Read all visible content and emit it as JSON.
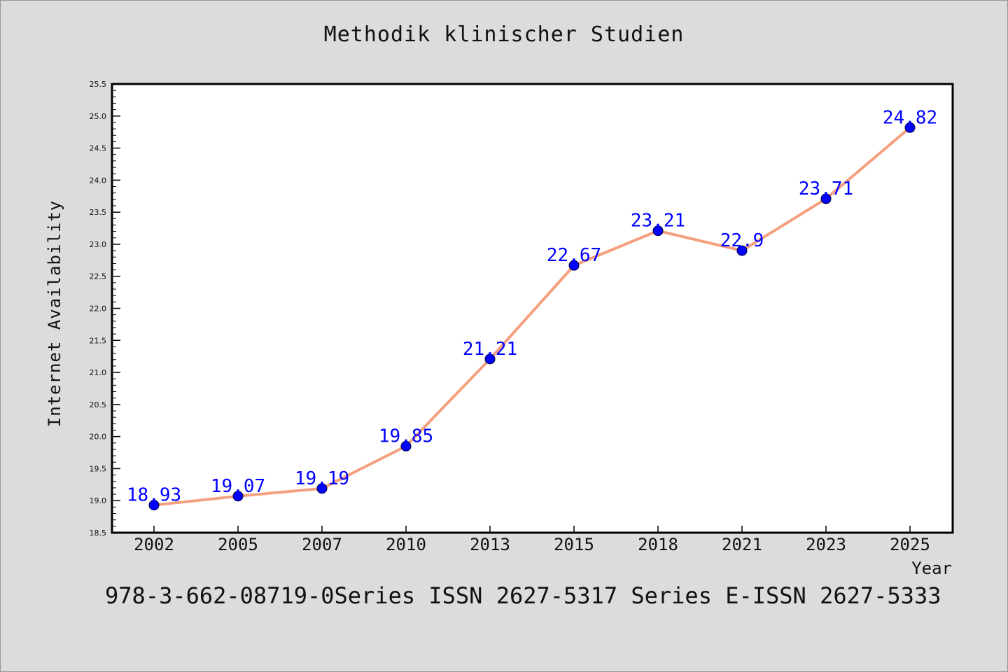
{
  "title": "Methodik klinischer Studien",
  "footer": "978-3-662-08719-0Series ISSN 2627-5317 Series E-ISSN 2627-5333",
  "colors": {
    "background": "#dcdcdc",
    "plot_background": "#ffffff",
    "line": "#f4a07e",
    "marker": "#0000ff",
    "label": "#0000ff"
  },
  "chart_data": {
    "type": "line",
    "title": "Methodik klinischer Studien",
    "xlabel": "Year",
    "ylabel": "Internet Availability",
    "categories": [
      "2002",
      "2005",
      "2007",
      "2010",
      "2013",
      "2015",
      "2018",
      "2021",
      "2023",
      "2025"
    ],
    "series": [
      {
        "values": [
          18.93,
          19.07,
          19.19,
          19.85,
          21.21,
          22.67,
          23.21,
          22.9,
          23.71,
          24.82
        ]
      }
    ],
    "data_labels": [
      "18.93",
      "19.07",
      "19.19",
      "19.85",
      "21.21",
      "22.67",
      "23.21",
      "22.9",
      "23.71",
      "24.82"
    ],
    "ylim": [
      18.5,
      25.5
    ],
    "yticks": [
      "18.5",
      "19.0",
      "19.5",
      "20.0",
      "20.5",
      "21.0",
      "21.5",
      "22.0",
      "22.5",
      "23.0",
      "23.5",
      "24.0",
      "24.5",
      "25.0",
      "25.5"
    ],
    "grid": false,
    "legend": "none"
  }
}
